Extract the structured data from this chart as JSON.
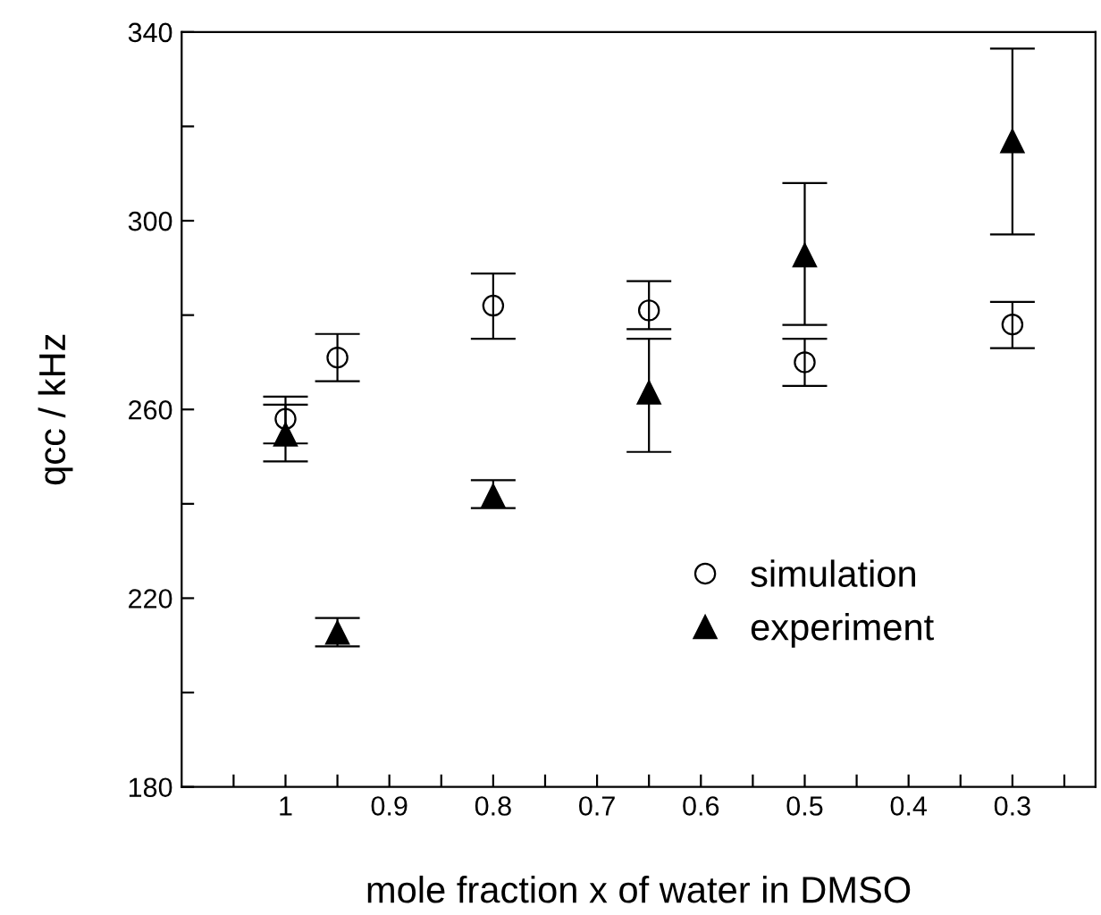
{
  "chart_data": {
    "type": "scatter",
    "xlabel": "mole fraction x of water in DMSO",
    "ylabel": "qcc / kHz",
    "x": [
      1,
      0.95,
      0.8,
      0.65,
      0.5,
      0.3
    ],
    "series": [
      {
        "name": "simulation",
        "color": "#000000",
        "marker": "circle",
        "values": [
          258,
          271,
          282,
          281,
          270,
          278
        ],
        "errors": [
          [
            249,
            262.7
          ],
          [
            266,
            276
          ],
          [
            275,
            288.8
          ],
          [
            277,
            287.2
          ],
          [
            265,
            275
          ],
          [
            273,
            282.8
          ]
        ]
      },
      {
        "name": "experiment",
        "color": "#000000",
        "marker": "triangle",
        "values": [
          254.7,
          212.7,
          241.7,
          263.6,
          292.7,
          316.9
        ],
        "errors": [
          [
            252.8,
            261
          ],
          [
            209.8,
            215.8
          ],
          [
            239.1,
            245
          ],
          [
            251,
            275
          ],
          [
            277.9,
            308
          ],
          [
            297.1,
            336.5
          ]
        ]
      }
    ],
    "xlim": [
      1.1,
      0.22
    ],
    "ylim": [
      180,
      340
    ],
    "xticks": [
      {
        "value": 1.05,
        "label": null
      },
      {
        "value": 1,
        "label": "1"
      },
      {
        "value": 0.95,
        "label": null
      },
      {
        "value": 0.9,
        "label": "0.9"
      },
      {
        "value": 0.85,
        "label": null
      },
      {
        "value": 0.8,
        "label": "0.8"
      },
      {
        "value": 0.75,
        "label": null
      },
      {
        "value": 0.7,
        "label": "0.7"
      },
      {
        "value": 0.65,
        "label": null
      },
      {
        "value": 0.6,
        "label": "0.6"
      },
      {
        "value": 0.55,
        "label": null
      },
      {
        "value": 0.5,
        "label": "0.5"
      },
      {
        "value": 0.45,
        "label": null
      },
      {
        "value": 0.4,
        "label": "0.4"
      },
      {
        "value": 0.35,
        "label": null
      },
      {
        "value": 0.3,
        "label": "0.3"
      },
      {
        "value": 0.25,
        "label": null
      }
    ],
    "yticks": [
      180,
      {
        "value": 200,
        "label": null
      },
      220,
      {
        "value": 240,
        "label": null
      },
      260,
      {
        "value": 280,
        "label": null
      },
      300,
      {
        "value": 320,
        "label": null
      },
      340
    ],
    "grid": false,
    "legend": "bottom right"
  }
}
